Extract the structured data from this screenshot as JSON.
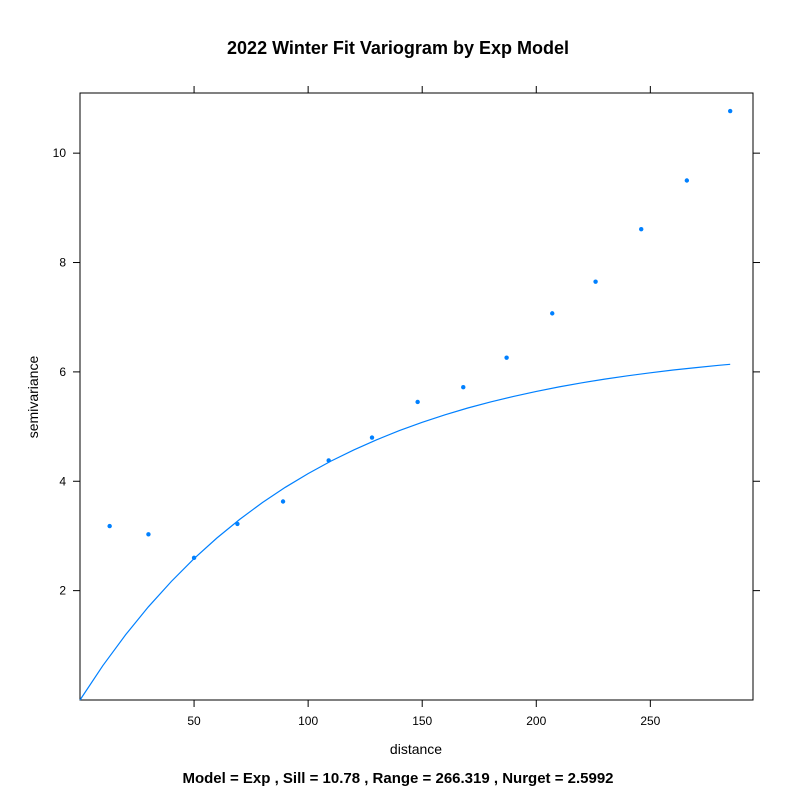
{
  "chart_data": {
    "type": "scatter",
    "title": "2022 Winter Fit Variogram by Exp Model",
    "xlabel": "distance",
    "ylabel": "semivariance",
    "caption": "Model = Exp , Sill = 10.78 , Range = 266.319 , Nurget = 2.5992",
    "xlim": [
      0,
      295
    ],
    "ylim": [
      0,
      11.1
    ],
    "x_ticks": [
      50,
      100,
      150,
      200,
      250
    ],
    "y_ticks": [
      2,
      4,
      6,
      8,
      10
    ],
    "grid": false,
    "legend": "none",
    "series": [
      {
        "type": "scatter",
        "x": [
          13,
          30,
          50,
          69,
          89,
          109,
          128,
          148,
          168,
          187,
          207,
          226,
          246,
          266,
          285
        ],
        "y": [
          3.18,
          3.03,
          2.6,
          3.22,
          3.63,
          4.38,
          4.8,
          5.45,
          5.72,
          6.26,
          7.07,
          7.65,
          8.61,
          9.5,
          10.77
        ]
      },
      {
        "type": "line",
        "x": [
          0,
          10,
          20,
          30,
          40,
          50,
          60,
          70,
          80,
          90,
          100,
          110,
          120,
          130,
          140,
          150,
          160,
          170,
          180,
          190,
          200,
          210,
          220,
          230,
          240,
          250,
          260,
          270,
          280,
          285
        ],
        "y": [
          0,
          0.627,
          1.193,
          1.705,
          2.167,
          2.585,
          2.962,
          3.303,
          3.611,
          3.889,
          4.14,
          4.368,
          4.573,
          4.759,
          4.926,
          5.078,
          5.215,
          5.339,
          5.451,
          5.552,
          5.643,
          5.726,
          5.8,
          5.868,
          5.929,
          5.984,
          6.034,
          6.079,
          6.12,
          6.139
        ]
      }
    ],
    "colors": {
      "series": "#0080ff",
      "axis": "#000000"
    }
  }
}
